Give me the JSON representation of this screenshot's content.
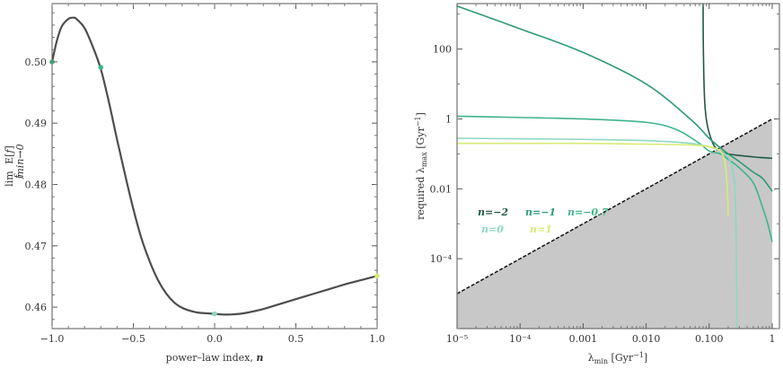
{
  "chart_data": [
    {
      "type": "line",
      "xlabel": "power–law index, n",
      "ylabel": "lim E[f]",
      "ylabel_sub": "fₘᵢₙ→0",
      "xlim": [
        -1.0,
        1.0
      ],
      "ylim": [
        0.4565,
        0.5095
      ],
      "x_ticks": [
        "−1.0",
        "−0.5",
        "0.0",
        "0.5",
        "1.0"
      ],
      "x_tick_values": [
        -1.0,
        -0.5,
        0.0,
        0.5,
        1.0
      ],
      "y_ticks": [
        "0.46",
        "0.47",
        "0.48",
        "0.49",
        "0.50"
      ],
      "y_tick_values": [
        0.46,
        0.47,
        0.48,
        0.49,
        0.5
      ],
      "series": [
        {
          "color": "#4d4d4d",
          "x": [
            -1.0,
            -0.97,
            -0.94,
            -0.9,
            -0.87,
            -0.85,
            -0.8,
            -0.75,
            -0.7,
            -0.65,
            -0.6,
            -0.55,
            -0.5,
            -0.45,
            -0.4,
            -0.35,
            -0.3,
            -0.25,
            -0.2,
            -0.15,
            -0.1,
            -0.05,
            0.0,
            0.05,
            0.1,
            0.15,
            0.2,
            0.3,
            0.4,
            0.5,
            0.6,
            0.7,
            0.8,
            0.9,
            1.0
          ],
          "values": [
            0.5,
            0.5035,
            0.5058,
            0.507,
            0.5072,
            0.507,
            0.5055,
            0.5025,
            0.4988,
            0.4934,
            0.4873,
            0.4815,
            0.476,
            0.4712,
            0.4675,
            0.4645,
            0.4623,
            0.4608,
            0.4599,
            0.4594,
            0.4591,
            0.459,
            0.4589,
            0.4588,
            0.4588,
            0.4589,
            0.4591,
            0.4597,
            0.4605,
            0.4613,
            0.4621,
            0.4629,
            0.4637,
            0.4644,
            0.4651
          ]
        }
      ],
      "markers": [
        {
          "x": -1.0,
          "y": 0.5,
          "color": "#45a077"
        },
        {
          "x": -0.7,
          "y": 0.4991,
          "color": "#3fb58a"
        },
        {
          "x": 0.0,
          "y": 0.4589,
          "color": "#8fd8c2"
        },
        {
          "x": 1.0,
          "y": 0.4651,
          "color": "#d8eb74"
        }
      ]
    },
    {
      "type": "line",
      "xlabel": "λmin [Gyr⁻¹]",
      "ylabel": "required λmax [Gyr⁻¹]",
      "xscale": "log",
      "yscale": "log",
      "xlim": [
        1e-05,
        1.3
      ],
      "ylim": [
        1e-06,
        2000
      ],
      "x_ticks": [
        "10⁻⁵",
        "10⁻⁴",
        "0.001",
        "0.010",
        "0.100",
        "1"
      ],
      "x_tick_values": [
        1e-05,
        0.0001,
        0.001,
        0.01,
        0.1,
        1
      ],
      "y_ticks": [
        "10⁻⁴",
        "0.01",
        "1",
        "100"
      ],
      "y_tick_values": [
        0.0001,
        0.01,
        1,
        100
      ],
      "shaded_region": "below the line λmax = λmin",
      "legend": [
        {
          "label": "n=−2",
          "color": "#1f5a45"
        },
        {
          "label": "n=−1",
          "color": "#2d9b73"
        },
        {
          "label": "n=−0.7",
          "color": "#3fb58a"
        },
        {
          "label": "n=0",
          "color": "#8fd8c2"
        },
        {
          "label": "n=1",
          "color": "#d8eb74"
        }
      ],
      "series": [
        {
          "name": "n=−2",
          "color": "#1f5a45",
          "x": [
            0.08,
            0.0805,
            0.082,
            0.085,
            0.09,
            0.1,
            0.12,
            0.15,
            0.2,
            0.3,
            0.5,
            0.7,
            1.0
          ],
          "values": [
            2000,
            200,
            20,
            3,
            1.0,
            0.4,
            0.17,
            0.12,
            0.1,
            0.09,
            0.082,
            0.078,
            0.075
          ]
        },
        {
          "name": "n=−1",
          "color": "#2d9b73",
          "x": [
            1e-05,
            0.0001,
            0.001,
            0.01,
            0.05,
            0.1,
            0.15,
            0.2,
            0.3,
            0.5,
            0.7,
            1.0
          ],
          "values": [
            1700,
            380,
            80,
            10,
            1.0,
            0.28,
            0.15,
            0.1,
            0.06,
            0.03,
            0.02,
            0.0085
          ]
        },
        {
          "name": "n=−0.7",
          "color": "#3fb58a",
          "x": [
            1e-05,
            0.0001,
            0.001,
            0.01,
            0.03,
            0.07,
            0.1,
            0.15,
            0.2,
            0.3,
            0.5,
            0.7,
            0.85,
            1.0
          ],
          "values": [
            1.2,
            1.1,
            1.0,
            0.8,
            0.5,
            0.2,
            0.12,
            0.1,
            0.07,
            0.04,
            0.015,
            0.003,
            0.001,
            0.0003
          ]
        },
        {
          "name": "n=0",
          "color": "#8fd8c2",
          "x": [
            1e-05,
            0.0001,
            0.001,
            0.01,
            0.05,
            0.1,
            0.15,
            0.2,
            0.24,
            0.26,
            0.27,
            0.275
          ],
          "values": [
            0.28,
            0.27,
            0.26,
            0.24,
            0.2,
            0.16,
            0.12,
            0.08,
            0.03,
            0.005,
            0.0001,
            1e-06
          ]
        },
        {
          "name": "n=1",
          "color": "#d8eb74",
          "x": [
            1e-05,
            0.0001,
            0.001,
            0.01,
            0.05,
            0.1,
            0.15,
            0.18,
            0.195,
            0.2
          ],
          "values": [
            0.2,
            0.2,
            0.2,
            0.19,
            0.18,
            0.16,
            0.12,
            0.05,
            0.008,
            0.0017
          ]
        }
      ]
    }
  ]
}
